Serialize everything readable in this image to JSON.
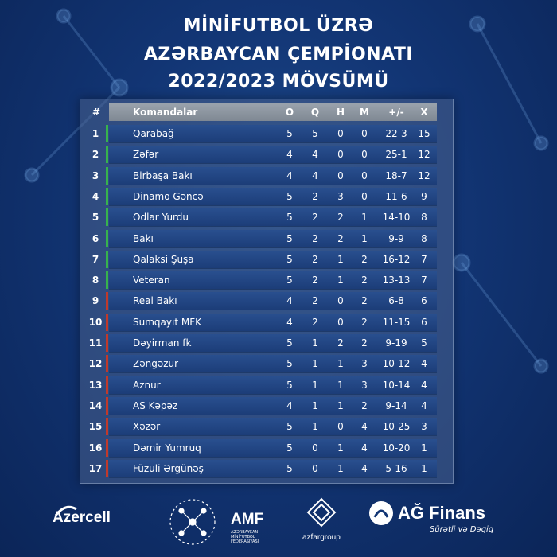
{
  "title": {
    "line1": "MİNİFUTBOL  ÜZRƏ",
    "line2": "AZƏRBAYCAN ÇEMPİONATI",
    "line3": "2022/2023 MÖVSÜMÜ"
  },
  "table": {
    "headers": {
      "num": "#",
      "team": "Komandalar",
      "o": "O",
      "q": "Q",
      "h": "H",
      "m": "M",
      "gd": "+/-",
      "x": "X"
    },
    "rows": [
      {
        "pos": "1",
        "team": "Qarabağ",
        "o": "5",
        "q": "5",
        "h": "0",
        "m": "0",
        "gd": "22-3",
        "x": "15",
        "zone": "green"
      },
      {
        "pos": "2",
        "team": "Zəfər",
        "o": "4",
        "q": "4",
        "h": "0",
        "m": "0",
        "gd": "25-1",
        "x": "12",
        "zone": "green"
      },
      {
        "pos": "3",
        "team": "Birbaşa Bakı",
        "o": "4",
        "q": "4",
        "h": "0",
        "m": "0",
        "gd": "18-7",
        "x": "12",
        "zone": "green"
      },
      {
        "pos": "4",
        "team": "Dinamo Gəncə",
        "o": "5",
        "q": "2",
        "h": "3",
        "m": "0",
        "gd": "11-6",
        "x": "9",
        "zone": "green"
      },
      {
        "pos": "5",
        "team": "Odlar Yurdu",
        "o": "5",
        "q": "2",
        "h": "2",
        "m": "1",
        "gd": "14-10",
        "x": "8",
        "zone": "green"
      },
      {
        "pos": "6",
        "team": "Bakı",
        "o": "5",
        "q": "2",
        "h": "2",
        "m": "1",
        "gd": "9-9",
        "x": "8",
        "zone": "green"
      },
      {
        "pos": "7",
        "team": "Qalaksi Şuşa",
        "o": "5",
        "q": "2",
        "h": "1",
        "m": "2",
        "gd": "16-12",
        "x": "7",
        "zone": "green"
      },
      {
        "pos": "8",
        "team": "Veteran",
        "o": "5",
        "q": "2",
        "h": "1",
        "m": "2",
        "gd": "13-13",
        "x": "7",
        "zone": "green"
      },
      {
        "pos": "9",
        "team": "Real Bakı",
        "o": "4",
        "q": "2",
        "h": "0",
        "m": "2",
        "gd": "6-8",
        "x": "6",
        "zone": "red"
      },
      {
        "pos": "10",
        "team": "Sumqayıt MFK",
        "o": "4",
        "q": "2",
        "h": "0",
        "m": "2",
        "gd": "11-15",
        "x": "6",
        "zone": "red"
      },
      {
        "pos": "11",
        "team": "Dəyirman fk",
        "o": "5",
        "q": "1",
        "h": "2",
        "m": "2",
        "gd": "9-19",
        "x": "5",
        "zone": "red"
      },
      {
        "pos": "12",
        "team": "Zəngəzur",
        "o": "5",
        "q": "1",
        "h": "1",
        "m": "3",
        "gd": "10-12",
        "x": "4",
        "zone": "red"
      },
      {
        "pos": "13",
        "team": "Aznur",
        "o": "5",
        "q": "1",
        "h": "1",
        "m": "3",
        "gd": "10-14",
        "x": "4",
        "zone": "red"
      },
      {
        "pos": "14",
        "team": "AS Kəpəz",
        "o": "4",
        "q": "1",
        "h": "1",
        "m": "2",
        "gd": "9-14",
        "x": "4",
        "zone": "red"
      },
      {
        "pos": "15",
        "team": "Xəzər",
        "o": "5",
        "q": "1",
        "h": "0",
        "m": "4",
        "gd": "10-25",
        "x": "3",
        "zone": "red"
      },
      {
        "pos": "16",
        "team": "Dəmir Yumruq",
        "o": "5",
        "q": "0",
        "h": "1",
        "m": "4",
        "gd": "10-20",
        "x": "1",
        "zone": "red"
      },
      {
        "pos": "17",
        "team": "Füzuli Ərgünəş",
        "o": "5",
        "q": "0",
        "h": "1",
        "m": "4",
        "gd": "5-16",
        "x": "1",
        "zone": "red"
      }
    ]
  },
  "colors": {
    "green": "#37b24d",
    "red": "#c0392b"
  },
  "sponsors": {
    "azercell": "Azercell",
    "amf": "AMF",
    "amf_sub": "AZƏRBAYCAN MİNİFUTBOL FEDERASİYASI",
    "azfar": "azfargroup",
    "ag": "AĞ Finans",
    "ag_sub": "Sürətli və Dəqiq"
  }
}
